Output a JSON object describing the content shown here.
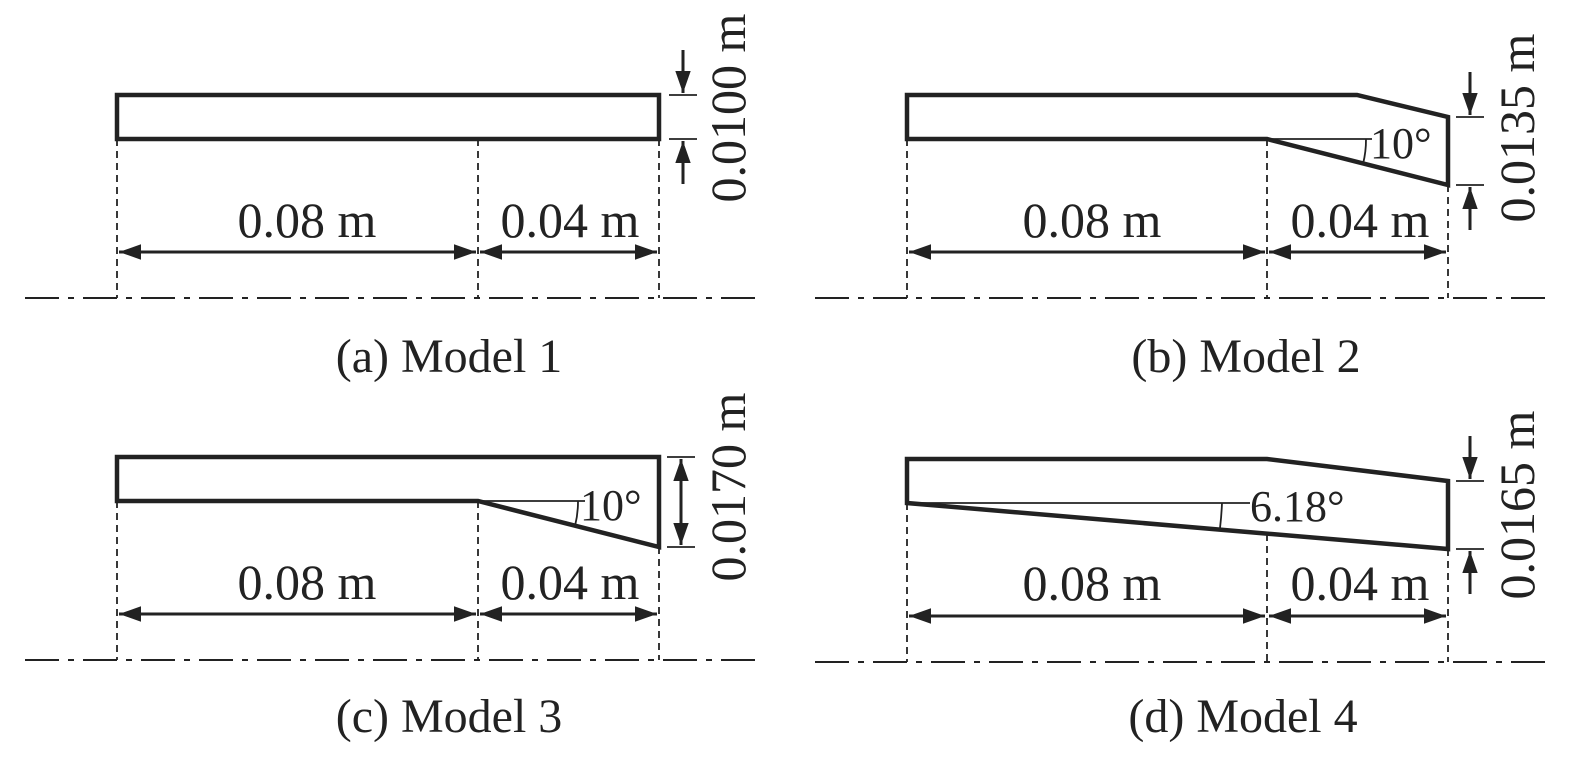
{
  "panels": [
    {
      "caption": "(a) Model 1",
      "len1": "0.08 m",
      "len2": "0.04 m",
      "height": "0.0100 m"
    },
    {
      "caption": "(b) Model 2",
      "len1": "0.08 m",
      "len2": "0.04 m",
      "height": "0.0135 m",
      "angle": "10°"
    },
    {
      "caption": "(c) Model 3",
      "len1": "0.08 m",
      "len2": "0.04 m",
      "height": "0.0170 m",
      "angle": "10°"
    },
    {
      "caption": "(d) Model 4",
      "len1": "0.08 m",
      "len2": "0.04 m",
      "height": "0.0165 m",
      "angle": "6.18°"
    }
  ]
}
